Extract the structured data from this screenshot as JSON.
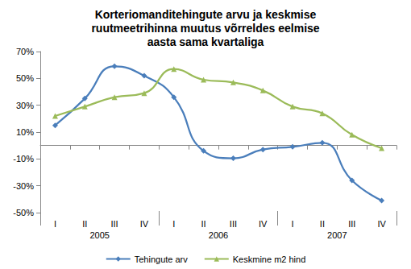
{
  "chart_data": {
    "type": "line",
    "title": "Korteriomanditehingute arvu ja keskmise\nruutmeetrihinna muutus võrreldes eelmise\naasta sama kvartaliga",
    "categories": [
      "I",
      "II",
      "III",
      "IV",
      "I",
      "II",
      "III",
      "IV",
      "I",
      "II",
      "III",
      "IV"
    ],
    "category_groups": [
      "2005",
      "2006",
      "2007"
    ],
    "series": [
      {
        "name": "Tehingute arv",
        "color": "#4a7ebb",
        "marker": "diamond",
        "line_style": "smooth",
        "values": [
          15,
          35,
          59,
          52,
          36,
          -4,
          -9.5,
          -3,
          -1,
          2,
          -26,
          -41
        ]
      },
      {
        "name": "Keskmine m2 hind",
        "color": "#9bbb59",
        "marker": "triangle",
        "line_style": "smooth",
        "values": [
          22,
          29,
          36,
          39,
          57,
          49,
          47,
          41,
          29,
          24,
          8,
          -2
        ]
      }
    ],
    "ylim": [
      -50,
      70
    ],
    "yticks": [
      {
        "value": -50,
        "label": "-50%"
      },
      {
        "value": -30,
        "label": "-30%"
      },
      {
        "value": -10,
        "label": "-10%"
      },
      {
        "value": 10,
        "label": "10%"
      },
      {
        "value": 30,
        "label": "30%"
      },
      {
        "value": 50,
        "label": "50%"
      },
      {
        "value": 70,
        "label": "70%"
      }
    ],
    "grid": false,
    "legend": "bottom"
  }
}
